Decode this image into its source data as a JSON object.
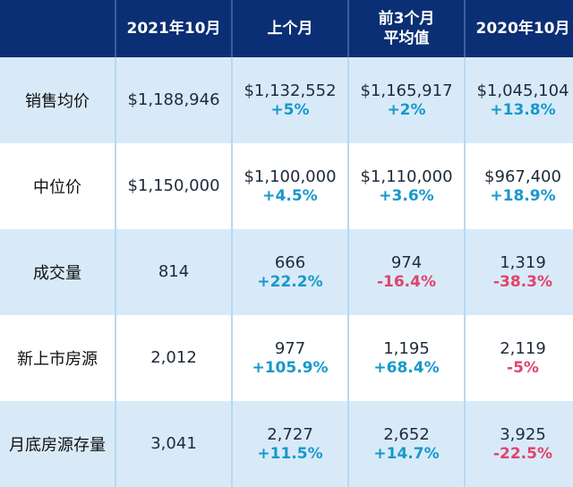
{
  "header": {
    "corner": "",
    "columns": [
      "2021年10月",
      "上个月",
      "前3个月\n平均值",
      "2020年10月"
    ]
  },
  "rows": [
    {
      "label": "销售均价",
      "current": "$1,188,946",
      "cells": [
        {
          "value": "$1,132,552",
          "change": "+5%",
          "dir": "pos"
        },
        {
          "value": "$1,165,917",
          "change": "+2%",
          "dir": "pos"
        },
        {
          "value": "$1,045,104",
          "change": "+13.8%",
          "dir": "pos"
        }
      ]
    },
    {
      "label": "中位价",
      "current": "$1,150,000",
      "cells": [
        {
          "value": "$1,100,000",
          "change": "+4.5%",
          "dir": "pos"
        },
        {
          "value": "$1,110,000",
          "change": "+3.6%",
          "dir": "pos"
        },
        {
          "value": "$967,400",
          "change": "+18.9%",
          "dir": "pos"
        }
      ]
    },
    {
      "label": "成交量",
      "current": "814",
      "cells": [
        {
          "value": "666",
          "change": "+22.2%",
          "dir": "pos"
        },
        {
          "value": "974",
          "change": "-16.4%",
          "dir": "neg"
        },
        {
          "value": "1,319",
          "change": "-38.3%",
          "dir": "neg"
        }
      ]
    },
    {
      "label": "新上市房源",
      "current": "2,012",
      "cells": [
        {
          "value": "977",
          "change": "+105.9%",
          "dir": "pos"
        },
        {
          "value": "1,195",
          "change": "+68.4%",
          "dir": "pos"
        },
        {
          "value": "2,119",
          "change": "-5%",
          "dir": "neg"
        }
      ]
    },
    {
      "label": "月底房源存量",
      "current": "3,041",
      "cells": [
        {
          "value": "2,727",
          "change": "+11.5%",
          "dir": "pos"
        },
        {
          "value": "2,652",
          "change": "+14.7%",
          "dir": "pos"
        },
        {
          "value": "3,925",
          "change": "-22.5%",
          "dir": "neg"
        }
      ]
    }
  ],
  "colors": {
    "header_bg": "#0b2f74",
    "row_blue": "#d8eaf8",
    "positive": "#1798cc",
    "negative": "#e0436b"
  }
}
